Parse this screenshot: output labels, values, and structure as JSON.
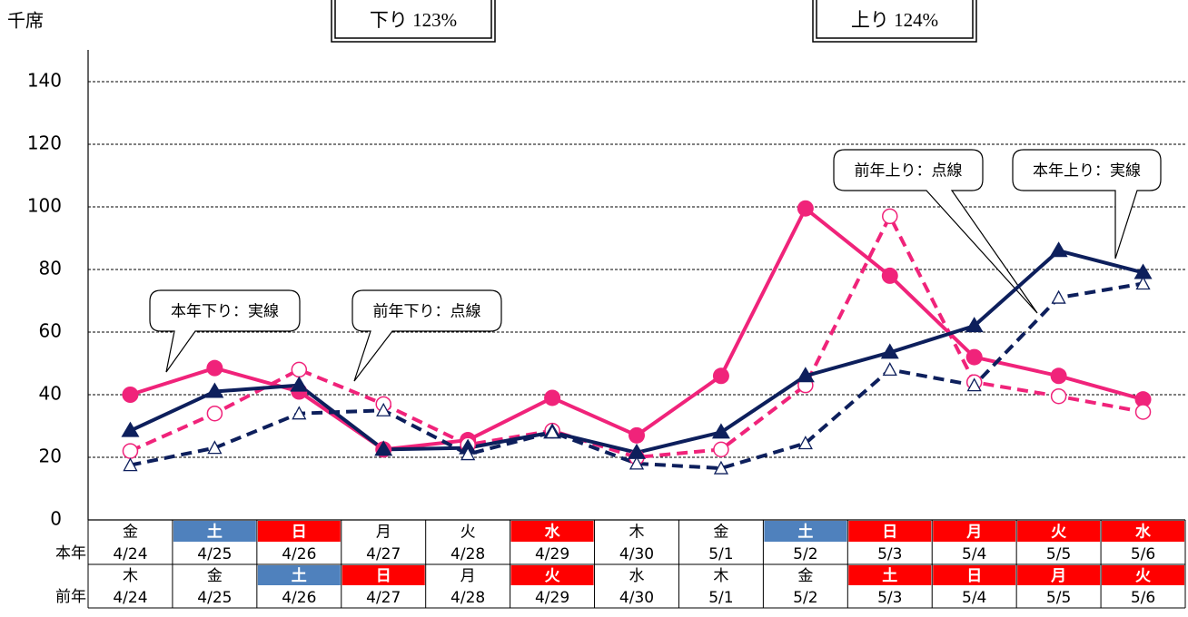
{
  "chart_data": {
    "type": "line",
    "unit_label": "千席",
    "summary_boxes": [
      "下り 123%",
      "上り 124%"
    ],
    "annotations": [
      "本年下り：実線",
      "前年下り：点線",
      "前年上り：点線",
      "本年上り：実線"
    ],
    "day_rows": [
      {
        "label": "本年",
        "weekdays": [
          "金",
          "土",
          "日",
          "月",
          "火",
          "水",
          "木",
          "金",
          "土",
          "日",
          "月",
          "火",
          "水"
        ],
        "dates": [
          "4/24",
          "4/25",
          "4/26",
          "4/27",
          "4/28",
          "4/29",
          "4/30",
          "5/1",
          "5/2",
          "5/3",
          "5/4",
          "5/5",
          "5/6"
        ],
        "colors": [
          null,
          "#4f81bd",
          "#ff0000",
          null,
          null,
          "#ff0000",
          null,
          null,
          "#4f81bd",
          "#ff0000",
          "#ff0000",
          "#ff0000",
          "#ff0000"
        ]
      },
      {
        "label": "前年",
        "weekdays": [
          "木",
          "金",
          "土",
          "日",
          "月",
          "火",
          "水",
          "木",
          "金",
          "土",
          "日",
          "月",
          "火"
        ],
        "dates": [
          "4/24",
          "4/25",
          "4/26",
          "4/27",
          "4/28",
          "4/29",
          "4/30",
          "5/1",
          "5/2",
          "5/3",
          "5/4",
          "5/5",
          "5/6"
        ],
        "colors": [
          null,
          null,
          "#4f81bd",
          "#ff0000",
          null,
          "#ff0000",
          null,
          null,
          null,
          "#ff0000",
          "#ff0000",
          "#ff0000",
          "#ff0000"
        ]
      }
    ],
    "series": [
      {
        "color": "#f0237a",
        "dashed": false,
        "marker": "filled-circle",
        "values": [
          40,
          48.5,
          41,
          22.5,
          25.5,
          39,
          27,
          46,
          99.5,
          78,
          52,
          46,
          38.5
        ]
      },
      {
        "color": "#f0237a",
        "dashed": true,
        "marker": "open-circle",
        "values": [
          22,
          34,
          48,
          37,
          24,
          28.5,
          20,
          22.5,
          43,
          97,
          44,
          39.5,
          34.5
        ]
      },
      {
        "color": "#0d1f5c",
        "dashed": false,
        "marker": "filled-triangle",
        "values": [
          28.5,
          41,
          43,
          22.5,
          23,
          28,
          21.5,
          28,
          46,
          53.5,
          62,
          86,
          79
        ]
      },
      {
        "color": "#0d1f5c",
        "dashed": true,
        "marker": "open-triangle",
        "values": [
          17.5,
          23,
          34,
          35,
          21,
          28,
          18,
          16.5,
          24.5,
          48,
          43,
          71,
          75.5
        ]
      }
    ],
    "ylim": [
      0,
      140
    ],
    "yticks": [
      0,
      20,
      40,
      60,
      80,
      100,
      120,
      140
    ],
    "grid": true
  }
}
